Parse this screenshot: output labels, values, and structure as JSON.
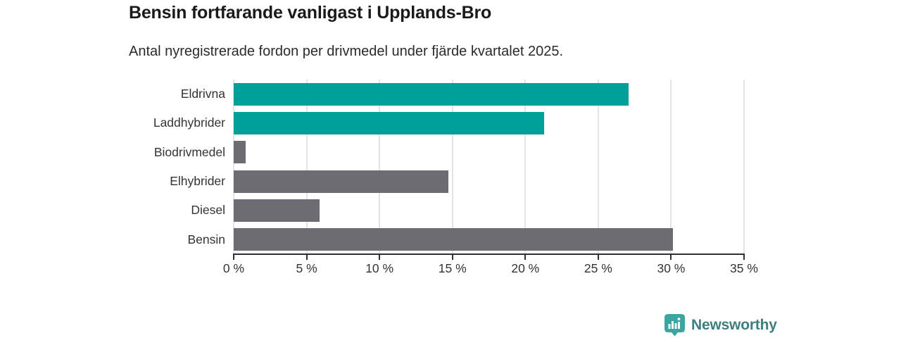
{
  "title": "Bensin fortfarande vanligast i Upplands-Bro",
  "subtitle": "Antal nyregistrerade fordon per drivmedel under fjärde kvartalet 2025.",
  "chart_data": {
    "type": "bar",
    "orientation": "horizontal",
    "title": "Bensin fortfarande vanligast i Upplands-Bro",
    "subtitle": "Antal nyregistrerade fordon per drivmedel under fjärde kvartalet 2025.",
    "categories": [
      "Eldrivna",
      "Laddhybrider",
      "Biodrivmedel",
      "Elhybrider",
      "Diesel",
      "Bensin"
    ],
    "values": [
      27.1,
      21.3,
      0.8,
      14.7,
      5.9,
      30.1
    ],
    "unit": "%",
    "bar_colors": [
      "#00A09A",
      "#00A09A",
      "#6C6C72",
      "#6C6C72",
      "#6C6C72",
      "#6C6C72"
    ],
    "xlim": [
      0,
      35
    ],
    "x_ticks": [
      0,
      5,
      10,
      15,
      20,
      25,
      30,
      35
    ],
    "x_tick_labels": [
      "0 %",
      "5 %",
      "10 %",
      "15 %",
      "20 %",
      "25 %",
      "30 %",
      "35 %"
    ],
    "grid": true,
    "legend": false
  },
  "colors": {
    "accent_teal": "#00A09A",
    "bar_gray": "#6C6C72",
    "gridline": "#E4E4E4",
    "axis_line": "#303030",
    "title_text": "#1A1A1A",
    "body_text": "#333333",
    "logo_icon_teal": "#3BA6A0",
    "logo_text_teal": "#3D7F7E"
  },
  "branding": {
    "logo_text": "Newsworthy",
    "logo_icon": "bar-chart-speech-bubble-icon"
  }
}
